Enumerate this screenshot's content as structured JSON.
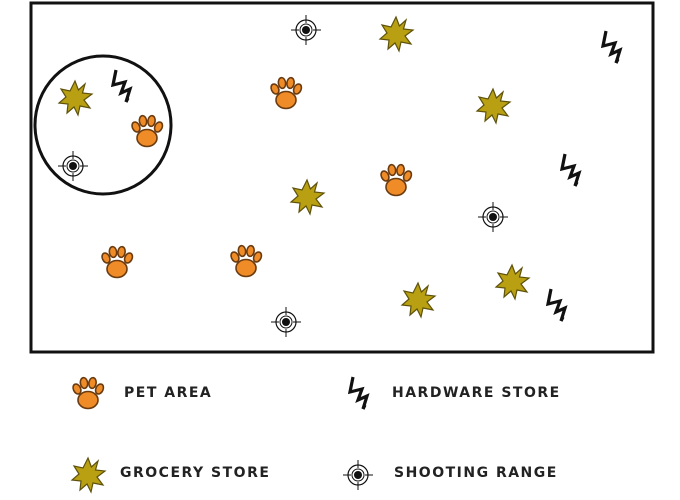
{
  "colors": {
    "pet": "#f08c28",
    "pet_outline": "#6a3b10",
    "grocery": "#b8a012",
    "grocery_outline": "#5e520a",
    "hardware": "#111111",
    "shooting": "#111111",
    "border": "#111111"
  },
  "legend": {
    "pet": {
      "label": "PET AREA",
      "icon": "paw-icon"
    },
    "hardware": {
      "label": "HARDWARE STORE",
      "icon": "lightning-bolt-icon"
    },
    "grocery": {
      "label": "GROCERY STORE",
      "icon": "starburst-icon"
    },
    "shooting": {
      "label": "SHOOTING RANGE",
      "icon": "crosshair-target-icon"
    }
  },
  "map": {
    "circled_group": [
      "grocery",
      "hardware",
      "pet",
      "shooting"
    ],
    "counts": {
      "pet": 5,
      "grocery": 6,
      "hardware": 4,
      "shooting": 4
    }
  }
}
